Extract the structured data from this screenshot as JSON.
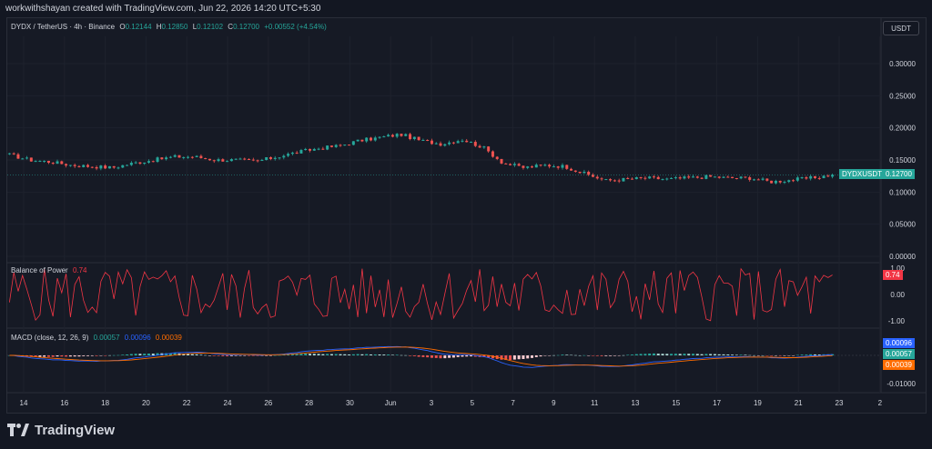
{
  "header": {
    "credit": "workwithshayan created with TradingView.com, Jun 22, 2026 14:20 UTC+5:30"
  },
  "main_legend": {
    "symbol": "DYDX / TetherUS · 4h · Binance",
    "o_label": "O",
    "o": "0.12144",
    "h_label": "H",
    "h": "0.12850",
    "l_label": "L",
    "l": "0.12102",
    "c_label": "C",
    "c": "0.12700",
    "change": "+0.00552 (+4.54%)"
  },
  "currency_button": "USDT",
  "bop_legend": {
    "name": "Balance of Power",
    "value": "0.74"
  },
  "macd_legend": {
    "name": "MACD (close, 12, 26, 9)",
    "hist": "0.00057",
    "macd": "0.00096",
    "signal": "0.00039"
  },
  "tags": {
    "symbol_tag": "DYDXUSDT",
    "price_tag": "0.12700",
    "bop_tag": "0.74",
    "macd_tag": "0.00096",
    "hist_tag": "0.00057",
    "signal_tag": "0.00039"
  },
  "branding": {
    "name": "TradingView"
  },
  "colors": {
    "up": "#26a69a",
    "down": "#ef5350",
    "bop": "#f23645",
    "macd": "#2962ff",
    "signal": "#ff6d00",
    "bg": "#161a25"
  },
  "chart_data": {
    "type": "candlestick",
    "symbol": "DYDX / TetherUS",
    "interval": "4h",
    "price_axis": {
      "ticks": [
        "0.30000",
        "0.25000",
        "0.20000",
        "0.15000",
        "0.10000",
        "0.05000",
        "0.00000"
      ],
      "range": [
        0,
        0.3
      ]
    },
    "time_axis": {
      "ticks": [
        "14",
        "16",
        "18",
        "20",
        "22",
        "24",
        "26",
        "28",
        "30",
        "Jun",
        "3",
        "5",
        "7",
        "9",
        "11",
        "13",
        "15",
        "17",
        "19",
        "21",
        "23",
        "2"
      ]
    },
    "close_series": [
      {
        "x": "May 13",
        "y": 0.158
      },
      {
        "x": "May 14",
        "y": 0.15
      },
      {
        "x": "May 15",
        "y": 0.147
      },
      {
        "x": "May 16",
        "y": 0.142
      },
      {
        "x": "May 17",
        "y": 0.14
      },
      {
        "x": "May 18",
        "y": 0.138
      },
      {
        "x": "May 19",
        "y": 0.145
      },
      {
        "x": "May 20",
        "y": 0.15
      },
      {
        "x": "May 21",
        "y": 0.155
      },
      {
        "x": "May 22",
        "y": 0.155
      },
      {
        "x": "May 23",
        "y": 0.15
      },
      {
        "x": "May 24",
        "y": 0.15
      },
      {
        "x": "May 25",
        "y": 0.148
      },
      {
        "x": "May 26",
        "y": 0.155
      },
      {
        "x": "May 27",
        "y": 0.162
      },
      {
        "x": "May 28",
        "y": 0.168
      },
      {
        "x": "May 29",
        "y": 0.172
      },
      {
        "x": "May 30",
        "y": 0.18
      },
      {
        "x": "May 31",
        "y": 0.185
      },
      {
        "x": "Jun 1",
        "y": 0.19
      },
      {
        "x": "Jun 2",
        "y": 0.18
      },
      {
        "x": "Jun 3",
        "y": 0.175
      },
      {
        "x": "Jun 4",
        "y": 0.182
      },
      {
        "x": "Jun 5",
        "y": 0.17
      },
      {
        "x": "Jun 6",
        "y": 0.145
      },
      {
        "x": "Jun 7",
        "y": 0.138
      },
      {
        "x": "Jun 8",
        "y": 0.142
      },
      {
        "x": "Jun 9",
        "y": 0.14
      },
      {
        "x": "Jun 10",
        "y": 0.128
      },
      {
        "x": "Jun 11",
        "y": 0.118
      },
      {
        "x": "Jun 12",
        "y": 0.12
      },
      {
        "x": "Jun 13",
        "y": 0.122
      },
      {
        "x": "Jun 14",
        "y": 0.12
      },
      {
        "x": "Jun 15",
        "y": 0.122
      },
      {
        "x": "Jun 16",
        "y": 0.124
      },
      {
        "x": "Jun 17",
        "y": 0.122
      },
      {
        "x": "Jun 18",
        "y": 0.122
      },
      {
        "x": "Jun 19",
        "y": 0.116
      },
      {
        "x": "Jun 20",
        "y": 0.119
      },
      {
        "x": "Jun 21",
        "y": 0.122
      },
      {
        "x": "Jun 22",
        "y": 0.127
      }
    ],
    "last_price": 0.127,
    "indicators": [
      {
        "name": "Balance of Power",
        "value": 0.74,
        "axis_ticks": [
          "1.00",
          "0.00",
          "-1.00"
        ],
        "range": [
          -1,
          1
        ]
      },
      {
        "name": "MACD (close, 12, 26, 9)",
        "macd": 0.00096,
        "signal": 0.00039,
        "histogram": 0.00057,
        "axis_ticks": [
          "-0.01000"
        ]
      }
    ]
  }
}
